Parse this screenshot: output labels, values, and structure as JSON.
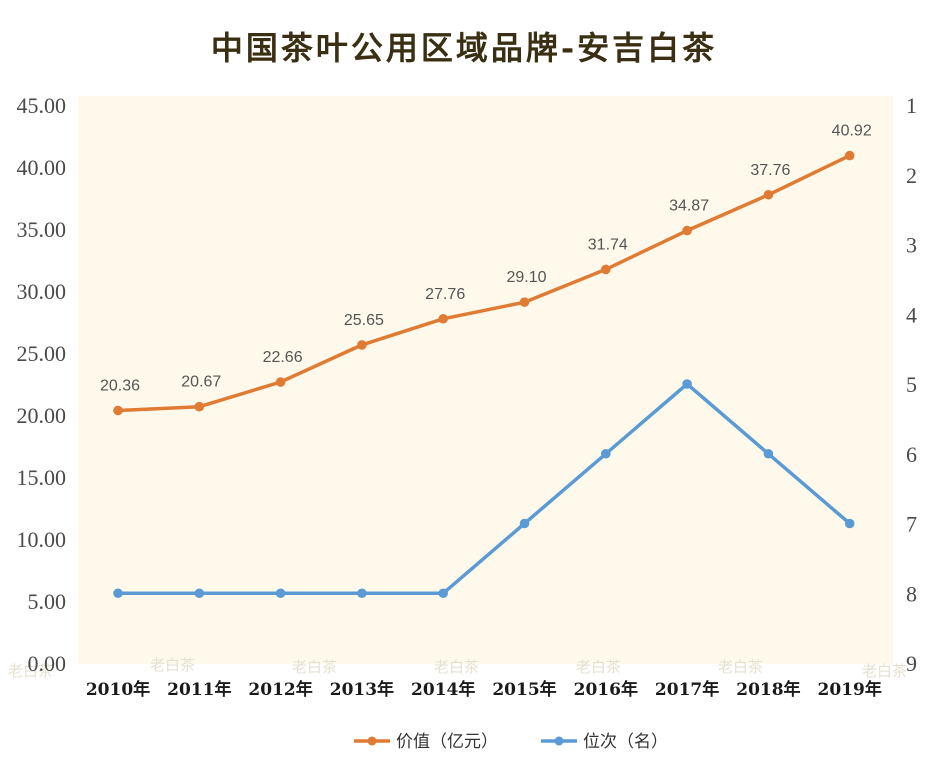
{
  "chart_data": {
    "type": "line",
    "title": "中国茶叶公用区域品牌-安吉白茶",
    "categories": [
      "2010年",
      "2011年",
      "2012年",
      "2013年",
      "2014年",
      "2015年",
      "2016年",
      "2017年",
      "2018年",
      "2019年"
    ],
    "series": [
      {
        "name": "价值（亿元）",
        "axis": "left",
        "color": "#E07B33",
        "values": [
          20.36,
          20.67,
          22.66,
          25.65,
          27.76,
          29.1,
          31.74,
          34.87,
          37.76,
          40.92
        ],
        "labels": [
          "20.36",
          "20.67",
          "22.66",
          "25.65",
          "27.76",
          "29.10",
          "31.74",
          "34.87",
          "37.76",
          "40.92"
        ]
      },
      {
        "name": "位次（名）",
        "axis": "right",
        "color": "#5B9BD5",
        "values": [
          8,
          8,
          8,
          8,
          8,
          7,
          6,
          5,
          6,
          7
        ]
      }
    ],
    "y_left": {
      "range": [
        0,
        45
      ],
      "ticks": [
        0,
        5,
        10,
        15,
        20,
        25,
        30,
        35,
        40,
        45
      ],
      "tick_labels": [
        "0.00",
        "5.00",
        "10.00",
        "15.00",
        "20.00",
        "25.00",
        "30.00",
        "35.00",
        "40.00",
        "45.00"
      ]
    },
    "y_right": {
      "range": [
        1,
        9
      ],
      "reversed": true,
      "ticks": [
        1,
        2,
        3,
        4,
        5,
        6,
        7,
        8,
        9
      ],
      "tick_labels": [
        "1",
        "2",
        "3",
        "4",
        "5",
        "6",
        "7",
        "8",
        "9"
      ]
    },
    "grid": false,
    "legend": "bottom",
    "plot_background": "#FEF9EB"
  },
  "watermark_text": "老白茶"
}
